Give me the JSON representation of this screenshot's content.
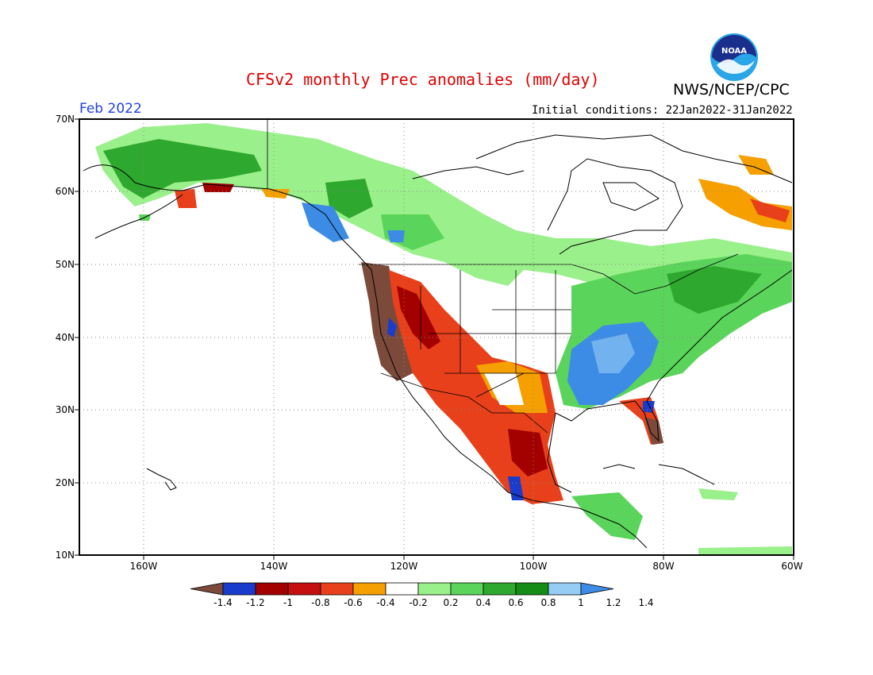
{
  "title": "CFSv2 monthly Prec anomalies (mm/day)",
  "organization": "NWS/NCEP/CPC",
  "logo_text": "NOAA",
  "valid_month": "Feb 2022",
  "initial_conditions": "Initial conditions: 22Jan2022-31Jan2022",
  "lat_labels": [
    "70N",
    "60N",
    "50N",
    "40N",
    "30N",
    "20N",
    "10N"
  ],
  "lon_labels": [
    "160W",
    "140W",
    "120W",
    "100W",
    "80W",
    "60W"
  ],
  "colorbar": {
    "colors": [
      "#7b4a3a",
      "#1a3ccc",
      "#a30000",
      "#c41010",
      "#e8401a",
      "#f5a000",
      "#ffffff",
      "#9af08a",
      "#5ad45a",
      "#2ea82e",
      "#158c15",
      "#96cdf5",
      "#3c8ce6"
    ],
    "tick_labels": [
      "-1.4",
      "-1.2",
      "-1",
      "-0.8",
      "-0.6",
      "-0.4",
      "-0.2",
      "0.2",
      "0.4",
      "0.6",
      "0.8",
      "1",
      "1.2",
      "1.4"
    ]
  }
}
